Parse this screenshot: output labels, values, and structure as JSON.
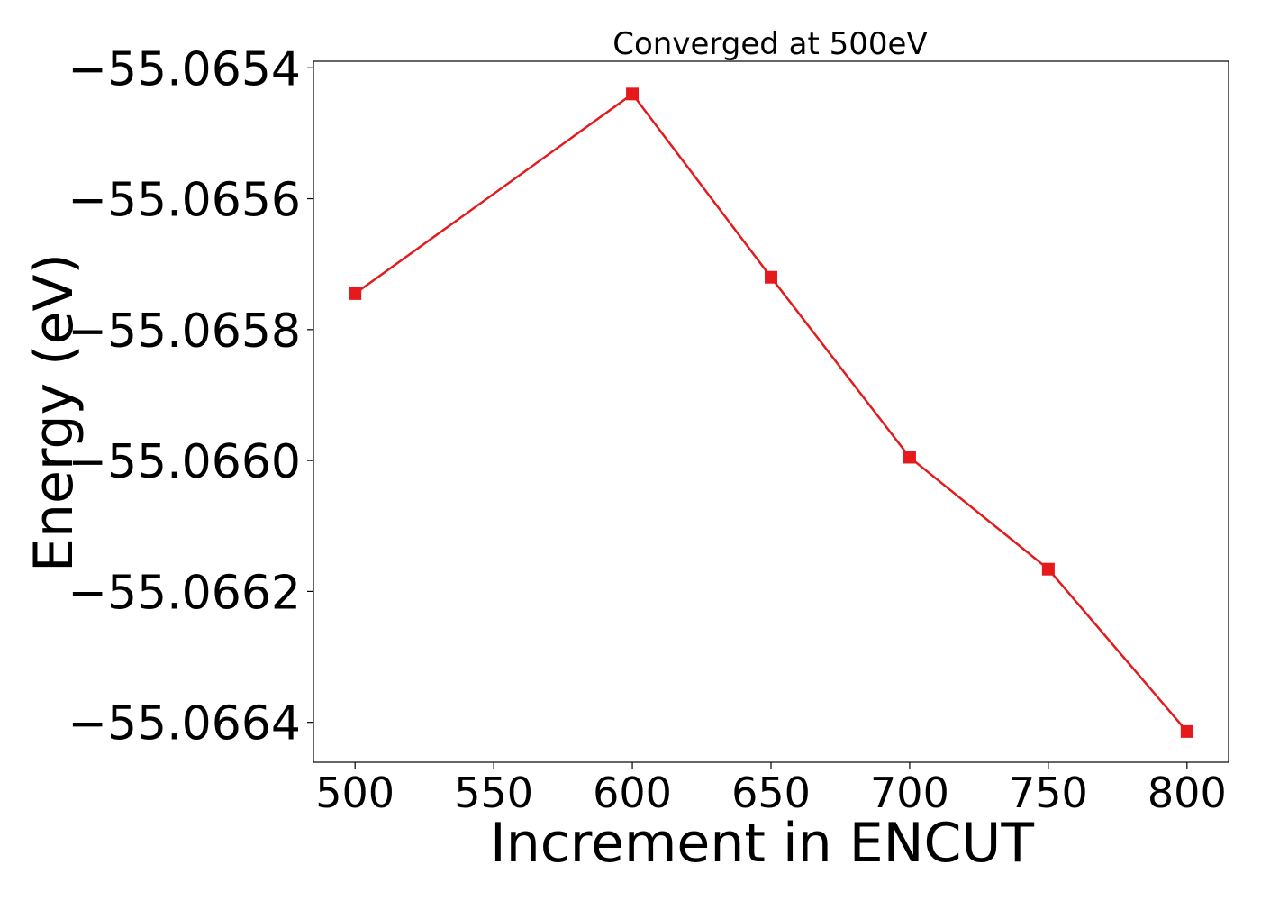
{
  "chart_data": {
    "type": "line",
    "title": "Converged at 500eV",
    "xlabel": "Increment in ENCUT",
    "ylabel": "Energy (eV)",
    "x": [
      500,
      600,
      650,
      700,
      750,
      800
    ],
    "series": [
      {
        "values": [
          -55.065745,
          -55.06544,
          -55.06572,
          -55.065995,
          -55.066166,
          -55.066414
        ],
        "color": "#e41a1c",
        "marker": "square"
      }
    ],
    "xticks": [
      500,
      550,
      600,
      650,
      700,
      750,
      800
    ],
    "xtick_labels": [
      "500",
      "550",
      "600",
      "650",
      "700",
      "750",
      "800"
    ],
    "yticks": [
      -55.0654,
      -55.0656,
      -55.0658,
      -55.066,
      -55.0662,
      -55.0664
    ],
    "ytick_labels": [
      "−55.0654",
      "−55.0656",
      "−55.0658",
      "−55.0660",
      "−55.0662",
      "−55.0664"
    ],
    "xlim": [
      485,
      815
    ],
    "ylim": [
      -55.066461,
      -55.06539
    ],
    "grid": false,
    "legend": "none"
  }
}
